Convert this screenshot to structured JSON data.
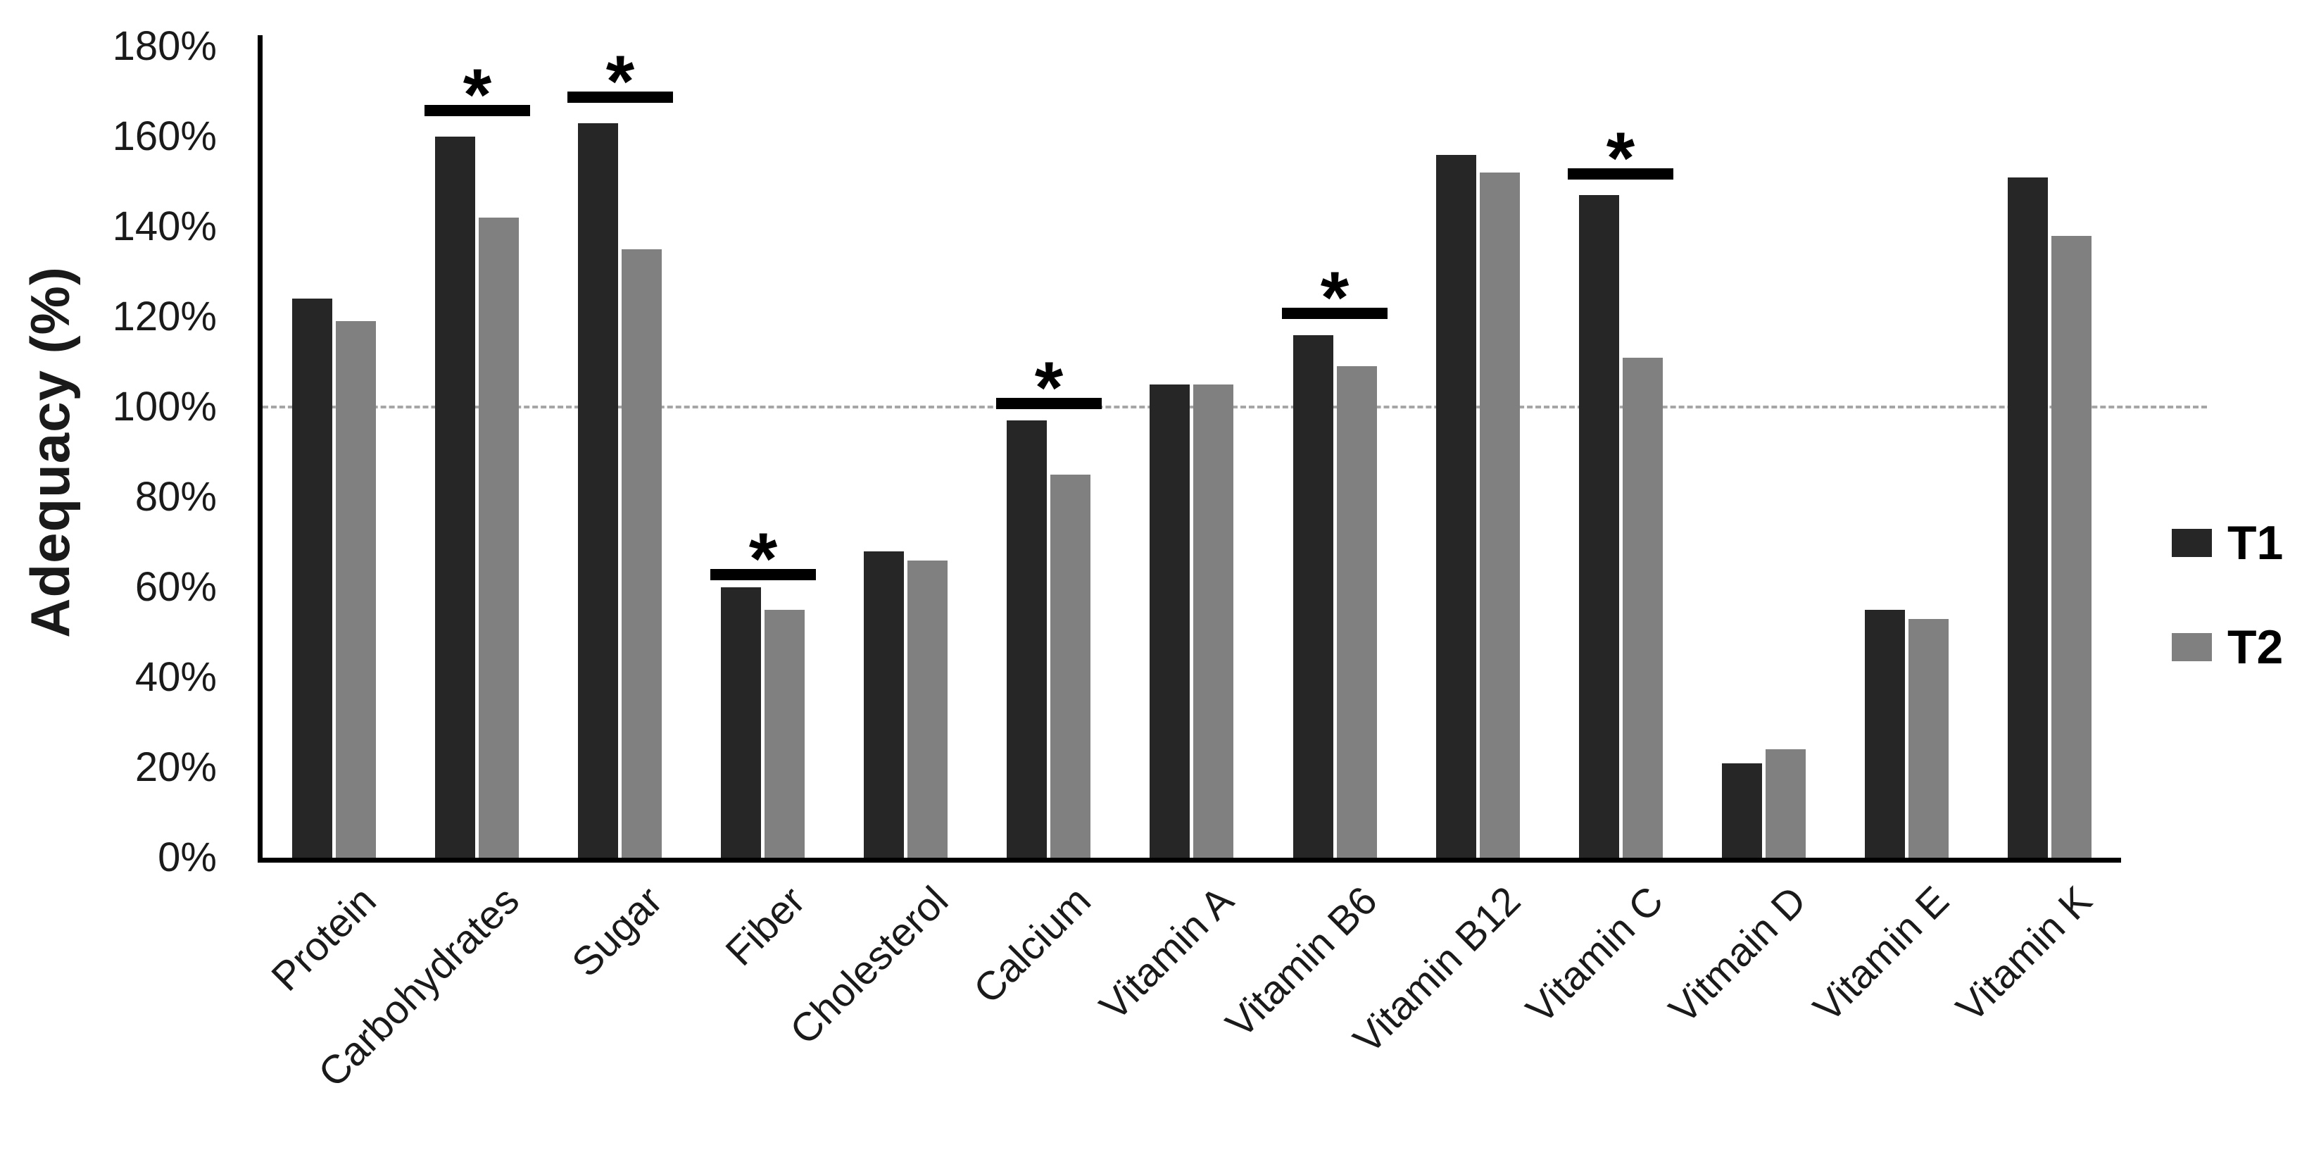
{
  "chart_data": {
    "type": "bar",
    "title": "",
    "xlabel": "",
    "ylabel": "Adequacy (%)",
    "ylim": [
      0,
      180
    ],
    "ytick_step": 20,
    "ytick_labels": [
      "0%",
      "20%",
      "40%",
      "60%",
      "80%",
      "100%",
      "120%",
      "140%",
      "160%",
      "180%"
    ],
    "grid": false,
    "legend_position": "right",
    "reference_line": {
      "value": 100,
      "style": "dashed",
      "color": "#a6a6a6"
    },
    "categories": [
      "Protein",
      "Carbohydrates",
      "Sugar",
      "Fiber",
      "Cholesterol",
      "Calcium",
      "Vitamin A",
      "Vitamin B6",
      "Vitamin B12",
      "Vitamin C",
      "Vitmain D",
      "Vitamin E",
      "Vitamin K"
    ],
    "series": [
      {
        "name": "T1",
        "color": "#262626",
        "values": [
          124,
          160,
          163,
          60,
          68,
          97,
          105,
          116,
          156,
          147,
          21,
          55,
          151
        ]
      },
      {
        "name": "T2",
        "color": "#808080",
        "values": [
          119,
          142,
          135,
          55,
          66,
          85,
          105,
          109,
          152,
          111,
          24,
          53,
          138
        ]
      }
    ],
    "significance_markers": [
      {
        "category": "Carbohydrates",
        "marker": "*",
        "line_value": 167
      },
      {
        "category": "Sugar",
        "marker": "*",
        "line_value": 170
      },
      {
        "category": "Fiber",
        "marker": "*",
        "line_value": 64
      },
      {
        "category": "Calcium",
        "marker": "*",
        "line_value": 102
      },
      {
        "category": "Vitamin B6",
        "marker": "*",
        "line_value": 122
      },
      {
        "category": "Vitamin C",
        "marker": "*",
        "line_value": 153
      }
    ],
    "axis_color": "#000000"
  }
}
